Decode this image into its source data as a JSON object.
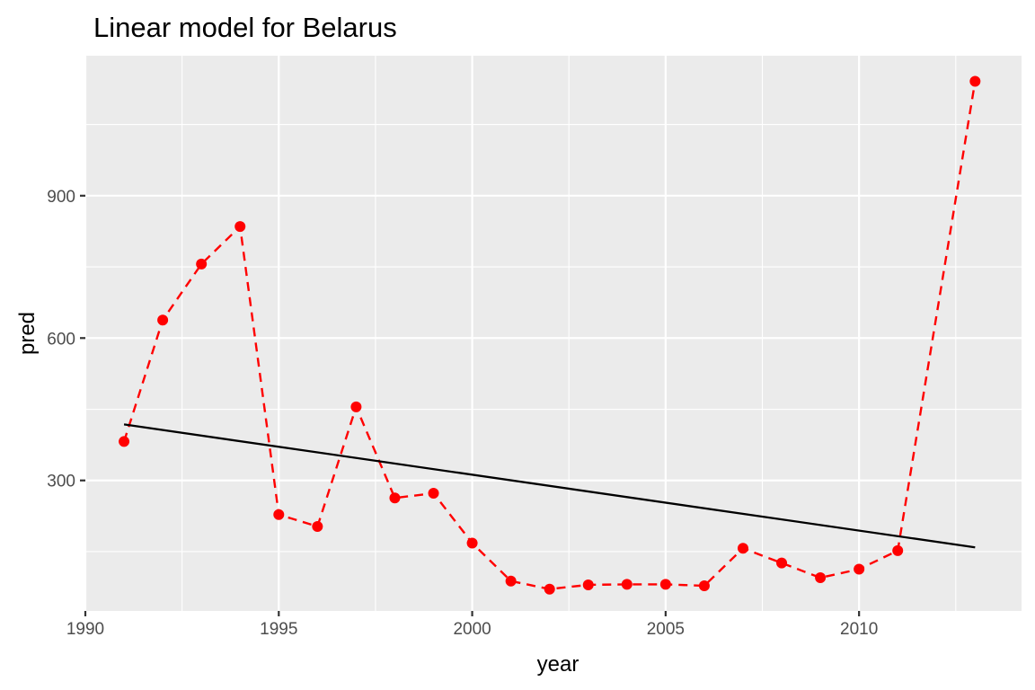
{
  "chart_data": {
    "type": "line",
    "title": "Linear model for Belarus",
    "xlabel": "year",
    "ylabel": "pred",
    "xlim": [
      1990,
      2014.2
    ],
    "ylim": [
      25,
      1195
    ],
    "x_ticks": [
      1990,
      1995,
      2000,
      2005,
      2010
    ],
    "y_ticks": [
      300,
      600,
      900
    ],
    "grid": true,
    "series": [
      {
        "style": "dashed",
        "color": "#FF0000",
        "markers": true,
        "x": [
          1991,
          1992,
          1993,
          1994,
          1995,
          1996,
          1997,
          1998,
          1999,
          2000,
          2001,
          2002,
          2003,
          2004,
          2005,
          2006,
          2007,
          2008,
          2009,
          2010,
          2011,
          2013
        ],
        "y": [
          382,
          638,
          756,
          835,
          228,
          203,
          455,
          263,
          273,
          168,
          88,
          71,
          80,
          81,
          81,
          78,
          157,
          126,
          95,
          113,
          152,
          1141
        ]
      },
      {
        "style": "solid",
        "color": "#000000",
        "markers": false,
        "x": [
          1991,
          2013
        ],
        "y": [
          418,
          159
        ]
      }
    ]
  }
}
